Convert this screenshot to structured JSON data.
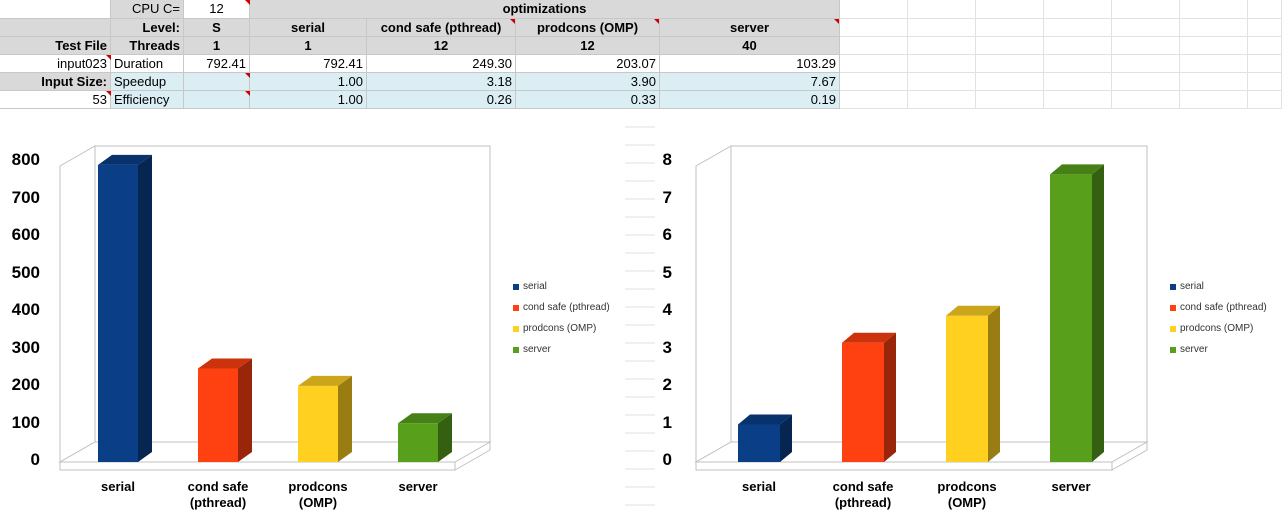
{
  "spreadsheet": {
    "cpu_label": "CPU C=",
    "cpu_value": "12",
    "optimizations_label": "optimizations",
    "level_label": "Level:",
    "level_values": [
      "S",
      "serial",
      "cond safe (pthread)",
      "prodcons (OMP)",
      "server"
    ],
    "test_file_label": "Test File",
    "threads_label": "Threads",
    "threads_values": [
      "1",
      "1",
      "12",
      "12",
      "40"
    ],
    "input_file": "input023",
    "duration_label": "Duration",
    "duration_values": [
      "792.41",
      "792.41",
      "249.30",
      "203.07",
      "103.29"
    ],
    "input_size_label": "Input Size:",
    "speedup_label": "Speedup",
    "speedup_values": [
      "",
      "1.00",
      "3.18",
      "3.90",
      "7.67"
    ],
    "input_size_value": "53",
    "efficiency_label": "Efficiency",
    "efficiency_values": [
      "",
      "1.00",
      "0.26",
      "0.33",
      "0.19"
    ]
  },
  "chart_data": [
    {
      "type": "bar",
      "categories": [
        "serial",
        "cond safe (pthread)",
        "prodcons (OMP)",
        "server"
      ],
      "category_labels": [
        [
          "serial"
        ],
        [
          "cond safe",
          "(pthread)"
        ],
        [
          "prodcons",
          "(OMP)"
        ],
        [
          "server"
        ]
      ],
      "values": [
        792.41,
        249.3,
        203.07,
        103.29
      ],
      "ylim": [
        0,
        800
      ],
      "yticks": [
        "0",
        "100",
        "200",
        "300",
        "400",
        "500",
        "600",
        "700",
        "800"
      ],
      "legend": [
        "serial",
        "cond safe (pthread)",
        "prodcons (OMP)",
        "server"
      ],
      "legend_position": "right",
      "colors": [
        "#0a3f87",
        "#ff4010",
        "#ffd020",
        "#58a01c"
      ]
    },
    {
      "type": "bar",
      "categories": [
        "serial",
        "cond safe (pthread)",
        "prodcons (OMP)",
        "server"
      ],
      "category_labels": [
        [
          "serial"
        ],
        [
          "cond safe",
          "(pthread)"
        ],
        [
          "prodcons",
          "(OMP)"
        ],
        [
          "server"
        ]
      ],
      "values": [
        1.0,
        3.18,
        3.9,
        7.67
      ],
      "ylim": [
        0,
        8
      ],
      "yticks": [
        "0",
        "1",
        "2",
        "3",
        "4",
        "5",
        "6",
        "7",
        "8"
      ],
      "legend": [
        "serial",
        "cond safe (pthread)",
        "prodcons (OMP)",
        "server"
      ],
      "legend_position": "right",
      "colors": [
        "#0a3f87",
        "#ff4010",
        "#ffd020",
        "#58a01c"
      ]
    }
  ]
}
